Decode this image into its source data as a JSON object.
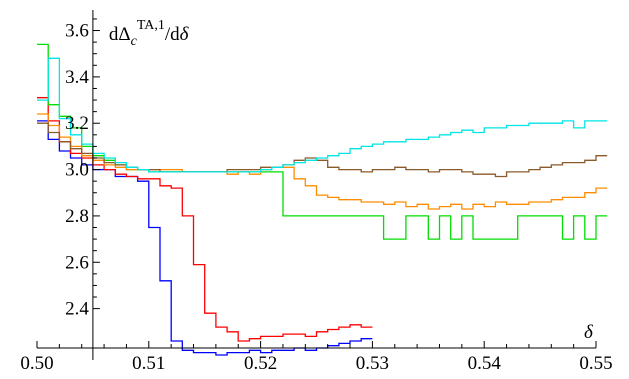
{
  "chart_data": {
    "type": "line",
    "title": "",
    "xlabel": "δ",
    "ylabel": "dΔ_c^{TA,1}/dδ",
    "ylabel_parts": {
      "main": "dΔ",
      "sub": "c",
      "sup": "TA,1",
      "tail": "/d",
      "var": "δ"
    },
    "xlim": [
      0.5,
      0.55
    ],
    "ylim": [
      2.23,
      3.68
    ],
    "x_axis_crossing_y": 2.23,
    "y_axis_at_x": 0.505,
    "x_ticks": [
      0.5,
      0.51,
      0.52,
      0.53,
      0.54,
      0.55
    ],
    "x_tick_labels": [
      "0.50",
      "0.51",
      "0.52",
      "0.53",
      "0.54",
      "0.55"
    ],
    "y_ticks": [
      2.4,
      2.6,
      2.8,
      3.0,
      3.2,
      3.4,
      3.6
    ],
    "y_tick_labels": [
      "2.4",
      "2.6",
      "2.8",
      "3.0",
      "3.2",
      "3.4",
      "3.6"
    ],
    "grid": false,
    "legend": "none",
    "step_width": 0.001,
    "series": [
      {
        "color": "#0000ff",
        "start_x": 0.5,
        "values": [
          3.21,
          3.13,
          3.08,
          3.05,
          3.02,
          3.0,
          3.0,
          2.97,
          2.97,
          2.95,
          2.75,
          2.52,
          2.26,
          2.22,
          2.21,
          2.21,
          2.2,
          2.21,
          2.21,
          2.22,
          2.21,
          2.22,
          2.22,
          2.23,
          2.22,
          2.23,
          2.24,
          2.25,
          2.26,
          2.27
        ]
      },
      {
        "color": "#ff0000",
        "start_x": 0.5,
        "values": [
          3.31,
          3.21,
          3.12,
          3.07,
          3.05,
          3.02,
          3.0,
          2.98,
          2.97,
          2.96,
          2.96,
          2.93,
          2.92,
          2.8,
          2.59,
          2.38,
          2.32,
          2.3,
          2.26,
          2.27,
          2.28,
          2.28,
          2.29,
          2.29,
          2.28,
          2.3,
          2.31,
          2.32,
          2.33,
          2.32
        ]
      },
      {
        "color": "#00dd00",
        "start_x": 0.5,
        "values": [
          3.54,
          3.28,
          3.23,
          3.18,
          3.1,
          3.06,
          3.04,
          3.02,
          3.0,
          3.0,
          2.99,
          2.99,
          2.99,
          2.99,
          2.99,
          2.99,
          2.99,
          2.99,
          2.99,
          2.99,
          2.99,
          2.99,
          2.8,
          2.8,
          2.8,
          2.8,
          2.8,
          2.8,
          2.8,
          2.8,
          2.8,
          2.7,
          2.7,
          2.8,
          2.8,
          2.7,
          2.8,
          2.7,
          2.8,
          2.7,
          2.7,
          2.7,
          2.7,
          2.8,
          2.8,
          2.8,
          2.8,
          2.7,
          2.8,
          2.7,
          2.8
        ]
      },
      {
        "color": "#ff8c00",
        "start_x": 0.5,
        "values": [
          3.24,
          3.19,
          3.14,
          3.1,
          3.06,
          3.04,
          3.02,
          3.01,
          3.0,
          3.0,
          3.0,
          3.0,
          3.0,
          2.99,
          2.99,
          2.99,
          2.99,
          2.98,
          2.99,
          2.98,
          3.0,
          3.01,
          3.01,
          2.96,
          2.93,
          2.89,
          2.88,
          2.87,
          2.87,
          2.86,
          2.86,
          2.85,
          2.86,
          2.84,
          2.85,
          2.83,
          2.84,
          2.85,
          2.83,
          2.85,
          2.84,
          2.86,
          2.85,
          2.85,
          2.86,
          2.86,
          2.87,
          2.88,
          2.88,
          2.9,
          2.92
        ]
      },
      {
        "color": "#8b5a2b",
        "start_x": 0.5,
        "values": [
          3.2,
          3.16,
          3.12,
          3.09,
          3.07,
          3.05,
          3.03,
          3.02,
          3.01,
          3.0,
          3.0,
          2.99,
          2.99,
          2.99,
          2.99,
          2.99,
          2.99,
          3.0,
          3.0,
          3.0,
          3.01,
          3.01,
          3.02,
          3.04,
          3.05,
          3.04,
          3.01,
          3.0,
          3.0,
          2.99,
          3.0,
          3.0,
          3.01,
          3.0,
          3.0,
          2.99,
          3.0,
          3.0,
          2.99,
          2.98,
          2.98,
          2.97,
          2.99,
          2.99,
          3.0,
          3.01,
          3.02,
          3.03,
          3.03,
          3.04,
          3.06
        ]
      },
      {
        "color": "#00e5e5",
        "start_x": 0.5,
        "values": [
          3.3,
          3.48,
          3.22,
          3.15,
          3.11,
          3.07,
          3.05,
          3.03,
          3.01,
          3.0,
          2.99,
          2.99,
          2.99,
          2.99,
          2.99,
          2.99,
          2.99,
          2.99,
          2.99,
          2.99,
          3.0,
          3.01,
          3.02,
          3.03,
          3.04,
          3.05,
          3.06,
          3.07,
          3.09,
          3.1,
          3.11,
          3.12,
          3.12,
          3.13,
          3.13,
          3.14,
          3.15,
          3.16,
          3.17,
          3.16,
          3.18,
          3.18,
          3.19,
          3.19,
          3.2,
          3.2,
          3.2,
          3.21,
          3.18,
          3.21,
          3.21
        ]
      }
    ]
  }
}
